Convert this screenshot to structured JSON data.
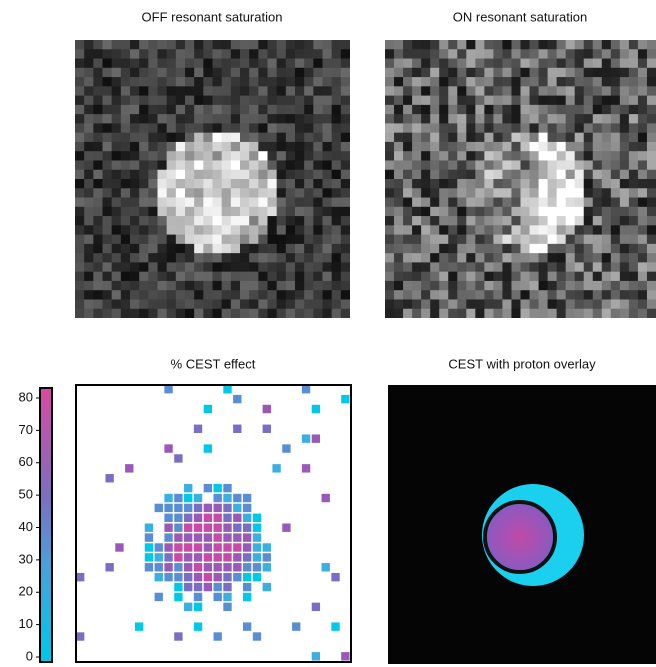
{
  "panels": [
    {
      "title": "OFF resonant saturation"
    },
    {
      "title": "ON resonant saturation"
    },
    {
      "title": "% CEST effect"
    },
    {
      "title": "CEST with proton overlay"
    }
  ],
  "colorbar": {
    "ticks": [
      0,
      10,
      20,
      30,
      40,
      50,
      60,
      70,
      80
    ]
  }
}
